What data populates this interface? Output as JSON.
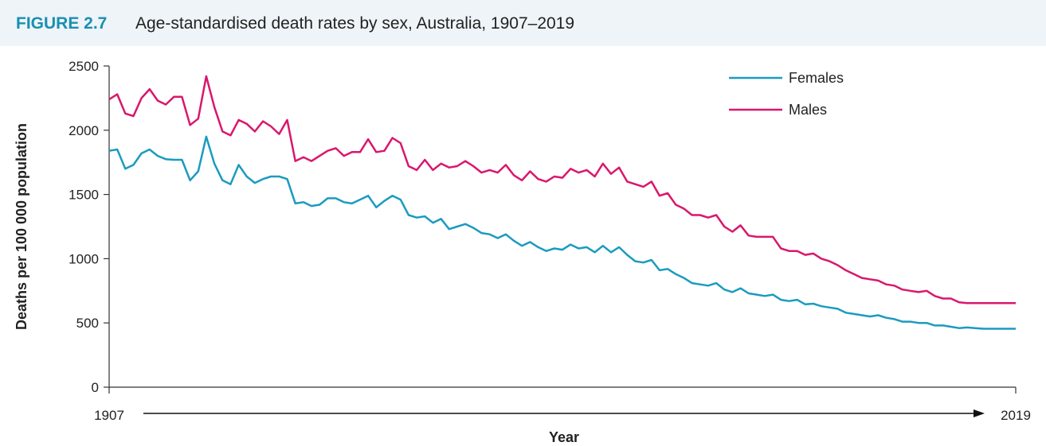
{
  "figure": {
    "number": "FIGURE 2.7",
    "caption": "Age-standardised death rates by sex, Australia, 1907–2019"
  },
  "chart_data": {
    "type": "line",
    "xlabel": "Year",
    "ylabel": "Deaths per 100 000 population",
    "xlim": [
      1907,
      2019
    ],
    "ylim": [
      0,
      2500
    ],
    "yticks": [
      0,
      500,
      1000,
      1500,
      2000,
      2500
    ],
    "x_start_label": "1907",
    "x_end_label": "2019",
    "legend_position": "top-right",
    "grid": false,
    "x": [
      1907,
      1908,
      1909,
      1910,
      1911,
      1912,
      1913,
      1914,
      1915,
      1916,
      1917,
      1918,
      1919,
      1920,
      1921,
      1922,
      1923,
      1924,
      1925,
      1926,
      1927,
      1928,
      1929,
      1930,
      1931,
      1932,
      1933,
      1934,
      1935,
      1936,
      1937,
      1938,
      1939,
      1940,
      1941,
      1942,
      1943,
      1944,
      1945,
      1946,
      1947,
      1948,
      1949,
      1950,
      1951,
      1952,
      1953,
      1954,
      1955,
      1956,
      1957,
      1958,
      1959,
      1960,
      1961,
      1962,
      1963,
      1964,
      1965,
      1966,
      1967,
      1968,
      1969,
      1970,
      1971,
      1972,
      1973,
      1974,
      1975,
      1976,
      1977,
      1978,
      1979,
      1980,
      1981,
      1982,
      1983,
      1984,
      1985,
      1986,
      1987,
      1988,
      1989,
      1990,
      1991,
      1992,
      1993,
      1994,
      1995,
      1996,
      1997,
      1998,
      1999,
      2000,
      2001,
      2002,
      2003,
      2004,
      2005,
      2006,
      2007,
      2008,
      2009,
      2010,
      2011,
      2012,
      2013,
      2014,
      2015,
      2016,
      2017,
      2018,
      2019
    ],
    "series": [
      {
        "name": "Females",
        "color": "#1b9bbf",
        "values": [
          1840,
          1850,
          1700,
          1730,
          1820,
          1850,
          1800,
          1775,
          1770,
          1770,
          1610,
          1680,
          1950,
          1740,
          1610,
          1580,
          1730,
          1640,
          1590,
          1620,
          1640,
          1640,
          1620,
          1430,
          1440,
          1410,
          1420,
          1470,
          1470,
          1440,
          1430,
          1460,
          1490,
          1400,
          1450,
          1490,
          1460,
          1340,
          1320,
          1330,
          1280,
          1310,
          1230,
          1250,
          1270,
          1240,
          1200,
          1190,
          1160,
          1190,
          1140,
          1100,
          1130,
          1090,
          1060,
          1080,
          1070,
          1110,
          1080,
          1090,
          1050,
          1100,
          1050,
          1090,
          1030,
          980,
          970,
          990,
          910,
          920,
          880,
          850,
          810,
          800,
          790,
          810,
          760,
          740,
          770,
          730,
          720,
          710,
          720,
          680,
          670,
          680,
          645,
          650,
          630,
          620,
          610,
          580,
          570,
          560,
          550,
          560,
          540,
          530,
          510,
          510,
          500,
          500,
          480,
          480,
          470,
          460,
          465,
          460,
          455,
          455,
          455,
          455,
          455
        ]
      },
      {
        "name": "Males",
        "color": "#d9176d",
        "values": [
          2240,
          2280,
          2130,
          2110,
          2250,
          2320,
          2230,
          2200,
          2260,
          2260,
          2040,
          2090,
          2420,
          2180,
          1990,
          1960,
          2080,
          2050,
          1990,
          2070,
          2030,
          1970,
          2080,
          1760,
          1790,
          1760,
          1800,
          1840,
          1860,
          1800,
          1830,
          1830,
          1930,
          1830,
          1840,
          1940,
          1900,
          1720,
          1690,
          1770,
          1690,
          1740,
          1710,
          1720,
          1760,
          1720,
          1670,
          1690,
          1670,
          1730,
          1650,
          1610,
          1680,
          1620,
          1600,
          1640,
          1630,
          1700,
          1670,
          1690,
          1640,
          1740,
          1660,
          1710,
          1600,
          1580,
          1560,
          1600,
          1490,
          1510,
          1420,
          1390,
          1340,
          1340,
          1320,
          1340,
          1250,
          1210,
          1260,
          1180,
          1170,
          1170,
          1170,
          1080,
          1060,
          1060,
          1030,
          1040,
          1000,
          980,
          950,
          910,
          880,
          850,
          840,
          830,
          800,
          790,
          760,
          750,
          740,
          750,
          710,
          690,
          690,
          660,
          655,
          655,
          655,
          655,
          655,
          655,
          655
        ]
      }
    ]
  }
}
